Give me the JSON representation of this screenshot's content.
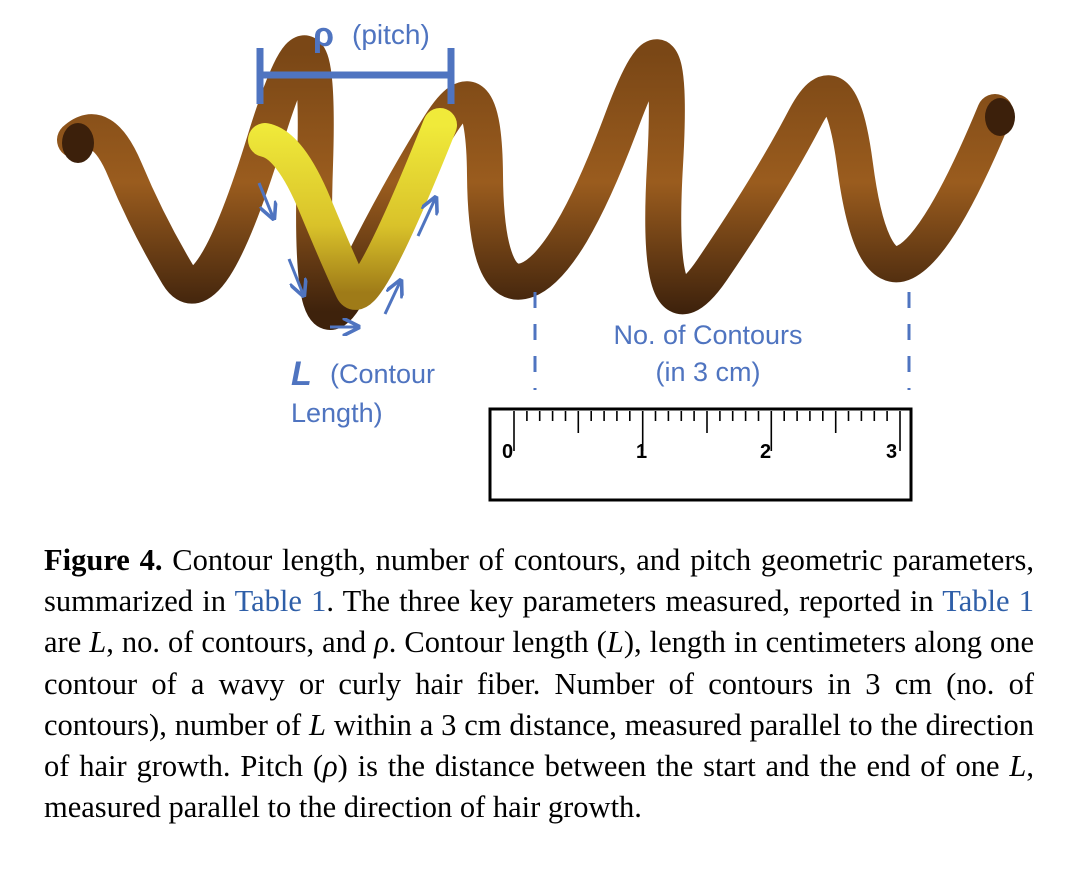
{
  "figure": {
    "labels": {
      "pitch_symbol": "ρ",
      "pitch_text": "(pitch)",
      "contour_symbol": "L",
      "contour_text_line1": "(Contour",
      "contour_text_line2": "Length)",
      "contours_line1": "No. of Contours",
      "contours_line2": "(in 3 cm)"
    },
    "ruler": {
      "ticks": [
        "0",
        "1",
        "2",
        "3"
      ]
    },
    "colors": {
      "annotation": "#4f74c0",
      "hair_dark": "#4a2a10",
      "hair_mid": "#9a5a1c",
      "highlight": "#e6e032",
      "link": "#2f5fa8"
    }
  },
  "caption": {
    "label": "Figure 4.",
    "seg1": " Contour length, number of contours, and pitch geometric parameters, summarized in ",
    "ref1": "Table 1",
    "seg2": ". The three key parameters measured, reported in ",
    "ref2": "Table 1",
    "seg3": " are ",
    "L1": "L",
    "seg4": ", no. of contours, and ",
    "rho1": "ρ",
    "seg5": ". Contour length (",
    "L2": "L",
    "seg6": "), length in centimeters along one contour of a wavy or curly hair fiber. Number of contours in 3 cm (no. of contours), number of ",
    "L3": "L",
    "seg7": " within a 3 cm distance, measured parallel to the direction of hair growth. Pitch (",
    "rho2": "ρ",
    "seg8": ") is the distance between the start and the end of one ",
    "L4": "L",
    "seg9": ", measured parallel to the direction of hair growth."
  }
}
